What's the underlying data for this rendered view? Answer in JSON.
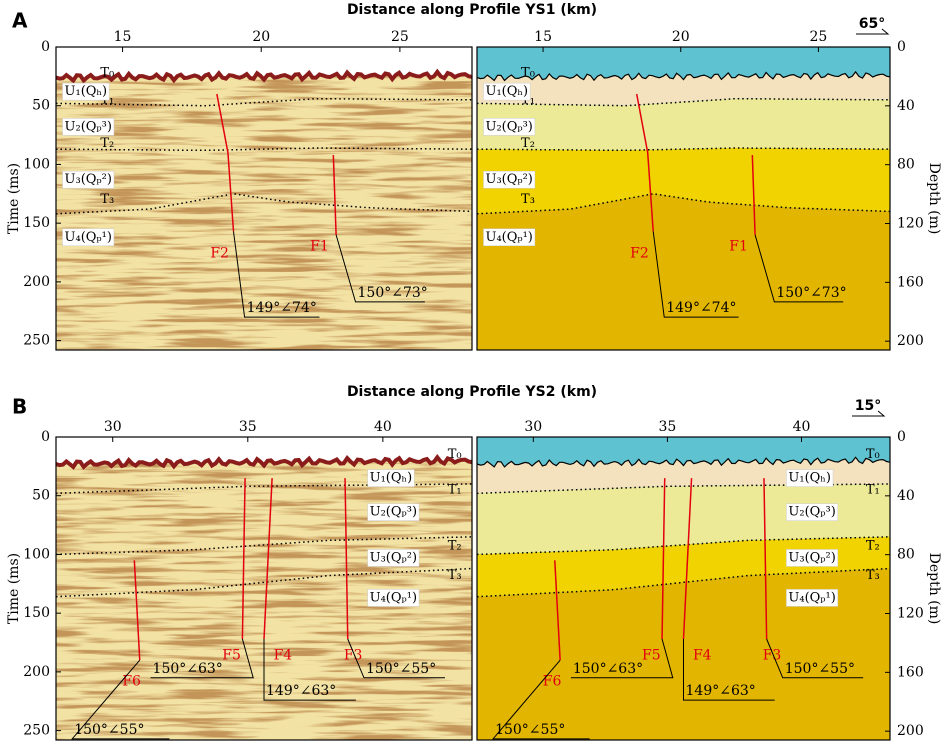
{
  "panels": [
    {
      "letter": "A",
      "title": "Distance along Profile YS1 (km)",
      "azimuth": "65°",
      "time_label": "Time (ms)",
      "depth_label": "Depth (m)",
      "xlim": [
        12.6,
        27.6
      ],
      "xticks": [
        15,
        20,
        25
      ],
      "time_lim": [
        0,
        258
      ],
      "time_ticks": [
        0,
        50,
        100,
        150,
        200,
        250
      ],
      "depth_lim": [
        0,
        206
      ],
      "depth_ticks": [
        0,
        40,
        80,
        120,
        160,
        200
      ],
      "horizons": [
        "T₀",
        "T₁",
        "T₂",
        "T₃"
      ],
      "units": [
        "U₁(Qₕ)",
        "U₂(Qₚ³)",
        "U₃(Qₚ²)",
        "U₄(Qₚ¹)"
      ],
      "faults": [
        {
          "label": "F2",
          "attitude": "149°∠74°"
        },
        {
          "label": "F1",
          "attitude": "150°∠73°"
        }
      ]
    },
    {
      "letter": "B",
      "title": "Distance along Profile YS2 (km)",
      "azimuth": "15°",
      "time_label": "Time (ms)",
      "depth_label": "Depth (m)",
      "xlim": [
        27.9,
        43.3
      ],
      "xticks": [
        30,
        35,
        40
      ],
      "time_lim": [
        0,
        258
      ],
      "time_ticks": [
        0,
        50,
        100,
        150,
        200,
        250
      ],
      "depth_lim": [
        0,
        206
      ],
      "depth_ticks": [
        0,
        40,
        80,
        120,
        160,
        200
      ],
      "horizons": [
        "T₀",
        "T₁",
        "T₂",
        "T₃"
      ],
      "units": [
        "U₁(Qₕ)",
        "U₂(Qₚ³)",
        "U₃(Qₚ²)",
        "U₄(Qₚ¹)"
      ],
      "faults": [
        {
          "label": "F6",
          "attitude": "150°∠55°"
        },
        {
          "label": "F5",
          "attitude": "150°∠63°"
        },
        {
          "label": "F4",
          "attitude": "149°∠63°"
        },
        {
          "label": "F3",
          "attitude": "150°∠55°"
        }
      ]
    }
  ]
}
